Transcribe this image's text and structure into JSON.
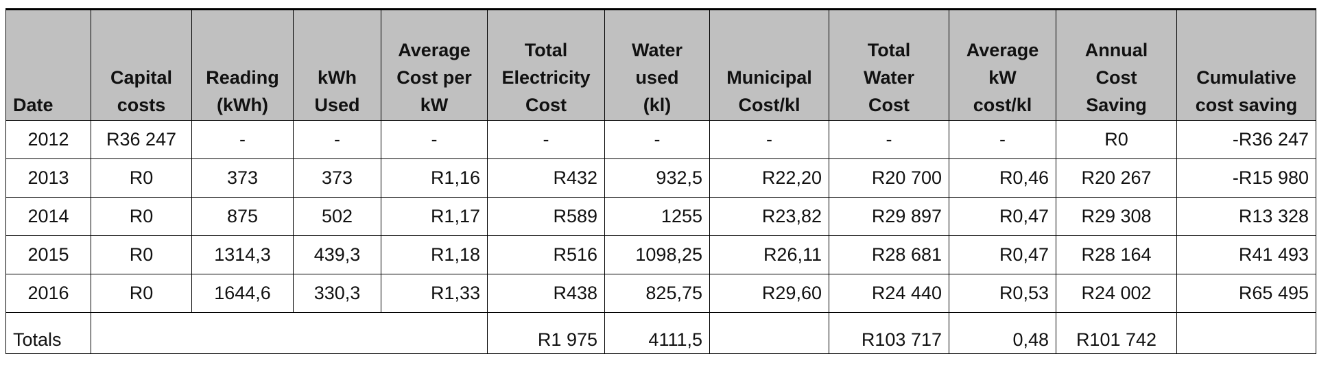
{
  "header": [
    [
      "Date"
    ],
    [
      "Capital",
      "costs"
    ],
    [
      "Reading",
      "(kWh)"
    ],
    [
      "kWh",
      "Used"
    ],
    [
      "Average",
      "Cost per",
      "kW"
    ],
    [
      "Total",
      "Electricity",
      "Cost"
    ],
    [
      "Water",
      "used",
      "(kl)"
    ],
    [
      "Municipal",
      "Cost/kl"
    ],
    [
      "Total",
      "Water",
      "Cost"
    ],
    [
      "Average",
      "kW",
      "cost/kl"
    ],
    [
      "Annual",
      "Cost",
      "Saving"
    ],
    [
      "Cumulative",
      "cost saving"
    ]
  ],
  "rows": [
    [
      "2012",
      "R36 247",
      "-",
      "-",
      "-",
      "-",
      "-",
      "-",
      "-",
      "-",
      "R0",
      "-R36 247"
    ],
    [
      "2013",
      "R0",
      "373",
      "373",
      "R1,16",
      "R432",
      "932,5",
      "R22,20",
      "R20 700",
      "R0,46",
      "R20 267",
      "-R15 980"
    ],
    [
      "2014",
      "R0",
      "875",
      "502",
      "R1,17",
      "R589",
      "1255",
      "R23,82",
      "R29 897",
      "R0,47",
      "R29 308",
      "R13 328"
    ],
    [
      "2015",
      "R0",
      "1314,3",
      "439,3",
      "R1,18",
      "R516",
      "1098,25",
      "R26,11",
      "R28 681",
      "R0,47",
      "R28 164",
      "R41 493"
    ],
    [
      "2016",
      "R0",
      "1644,6",
      "330,3",
      "R1,33",
      "R438",
      "825,75",
      "R29,60",
      "R24 440",
      "R0,53",
      "R24 002",
      "R65 495"
    ]
  ],
  "totals": {
    "label": "Totals",
    "total_electricity_cost": "R1 975",
    "water_used": "4111,5",
    "total_water_cost": "R103 717",
    "average_kw_cost_per_kl": "0,48",
    "annual_cost_saving": "R101 742"
  }
}
